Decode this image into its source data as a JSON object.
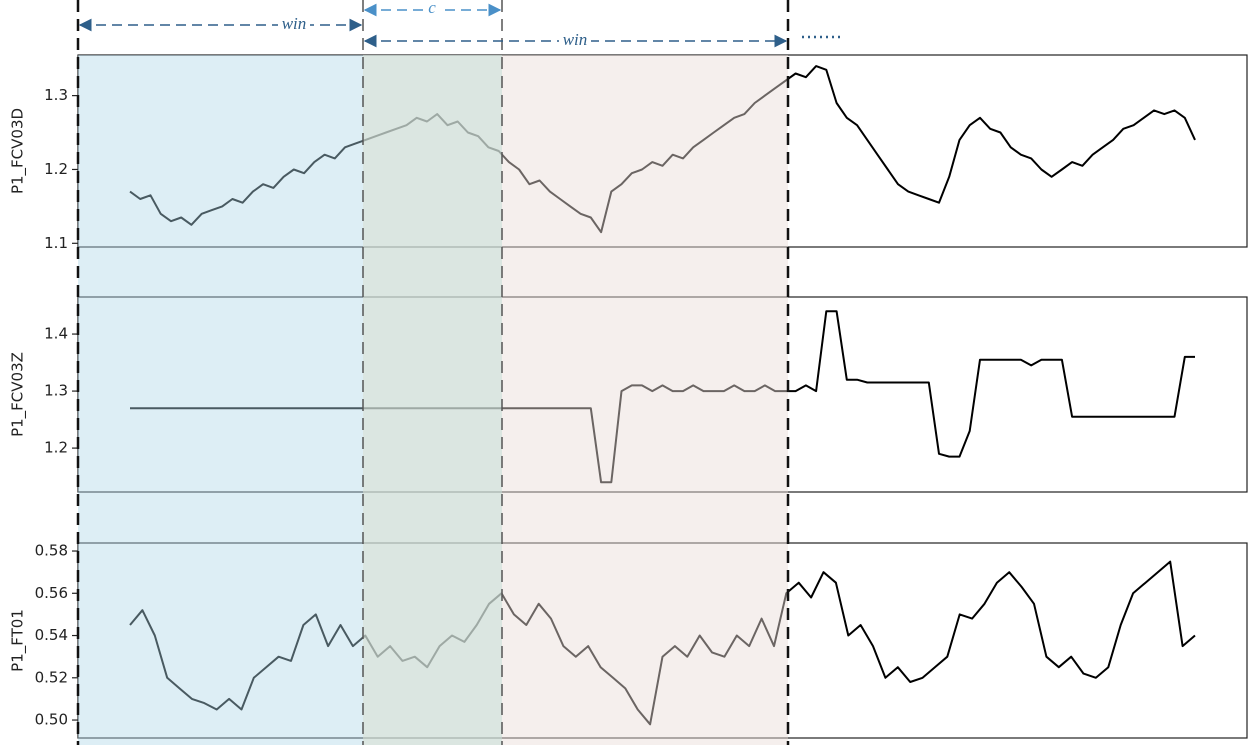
{
  "chart_data": [
    {
      "type": "line",
      "ylabel": "P1_FCV03D",
      "color": "#000000",
      "ylim": [
        1.095,
        1.355
      ],
      "yticks": [
        1.1,
        1.2,
        1.3
      ],
      "values": [
        1.17,
        1.16,
        1.165,
        1.14,
        1.13,
        1.135,
        1.125,
        1.14,
        1.145,
        1.15,
        1.16,
        1.155,
        1.17,
        1.18,
        1.175,
        1.19,
        1.2,
        1.195,
        1.21,
        1.22,
        1.215,
        1.23,
        1.235,
        1.24,
        1.245,
        1.25,
        1.255,
        1.26,
        1.27,
        1.265,
        1.275,
        1.26,
        1.265,
        1.25,
        1.245,
        1.23,
        1.225,
        1.21,
        1.2,
        1.18,
        1.185,
        1.17,
        1.16,
        1.15,
        1.14,
        1.135,
        1.115,
        1.17,
        1.18,
        1.195,
        1.2,
        1.21,
        1.205,
        1.22,
        1.215,
        1.23,
        1.24,
        1.25,
        1.26,
        1.27,
        1.275,
        1.29,
        1.3,
        1.31,
        1.32,
        1.33,
        1.325,
        1.34,
        1.335,
        1.29,
        1.27,
        1.26,
        1.24,
        1.22,
        1.2,
        1.18,
        1.17,
        1.165,
        1.16,
        1.155,
        1.19,
        1.24,
        1.26,
        1.27,
        1.255,
        1.25,
        1.23,
        1.22,
        1.215,
        1.2,
        1.19,
        1.2,
        1.21,
        1.205,
        1.22,
        1.23,
        1.24,
        1.255,
        1.26,
        1.27,
        1.28,
        1.275,
        1.28,
        1.27,
        1.24
      ]
    },
    {
      "type": "line",
      "ylabel": "P1_FCV03Z",
      "color": "#000000",
      "ylim": [
        1.123,
        1.465
      ],
      "yticks": [
        1.2,
        1.3,
        1.4
      ],
      "values": [
        1.27,
        1.27,
        1.27,
        1.27,
        1.27,
        1.27,
        1.27,
        1.27,
        1.27,
        1.27,
        1.27,
        1.27,
        1.27,
        1.27,
        1.27,
        1.27,
        1.27,
        1.27,
        1.27,
        1.27,
        1.27,
        1.27,
        1.27,
        1.27,
        1.27,
        1.27,
        1.27,
        1.27,
        1.27,
        1.27,
        1.27,
        1.27,
        1.27,
        1.27,
        1.27,
        1.27,
        1.27,
        1.27,
        1.27,
        1.27,
        1.27,
        1.27,
        1.27,
        1.27,
        1.27,
        1.27,
        1.14,
        1.14,
        1.3,
        1.31,
        1.31,
        1.3,
        1.31,
        1.3,
        1.3,
        1.31,
        1.3,
        1.3,
        1.3,
        1.31,
        1.3,
        1.3,
        1.31,
        1.3,
        1.3,
        1.3,
        1.31,
        1.3,
        1.44,
        1.44,
        1.32,
        1.32,
        1.315,
        1.315,
        1.315,
        1.315,
        1.315,
        1.315,
        1.315,
        1.19,
        1.185,
        1.185,
        1.23,
        1.355,
        1.355,
        1.355,
        1.355,
        1.355,
        1.345,
        1.355,
        1.355,
        1.355,
        1.255,
        1.255,
        1.255,
        1.255,
        1.255,
        1.255,
        1.255,
        1.255,
        1.255,
        1.255,
        1.255,
        1.36,
        1.36
      ]
    },
    {
      "type": "line",
      "ylabel": "P1_FT01",
      "color": "#000000",
      "ylim": [
        0.4915,
        0.5838
      ],
      "yticks": [
        {
          "value": 0.5,
          "label": "0.50"
        },
        0.52,
        0.54,
        0.56,
        0.58
      ],
      "values": [
        0.545,
        0.552,
        0.54,
        0.52,
        0.515,
        0.51,
        0.508,
        0.505,
        0.51,
        0.505,
        0.52,
        0.525,
        0.53,
        0.528,
        0.545,
        0.55,
        0.535,
        0.545,
        0.535,
        0.54,
        0.53,
        0.535,
        0.528,
        0.53,
        0.525,
        0.535,
        0.54,
        0.537,
        0.545,
        0.555,
        0.56,
        0.55,
        0.545,
        0.555,
        0.548,
        0.535,
        0.53,
        0.535,
        0.525,
        0.52,
        0.515,
        0.505,
        0.498,
        0.53,
        0.535,
        0.53,
        0.54,
        0.532,
        0.53,
        0.54,
        0.535,
        0.548,
        0.535,
        0.56,
        0.565,
        0.558,
        0.57,
        0.565,
        0.54,
        0.545,
        0.535,
        0.52,
        0.525,
        0.518,
        0.52,
        0.525,
        0.53,
        0.55,
        0.548,
        0.555,
        0.565,
        0.57,
        0.563,
        0.555,
        0.53,
        0.525,
        0.53,
        0.522,
        0.52,
        0.525,
        0.545,
        0.56,
        0.565,
        0.57,
        0.575,
        0.535,
        0.54
      ]
    }
  ],
  "annotations": [
    "win",
    "c",
    "win"
  ]
}
